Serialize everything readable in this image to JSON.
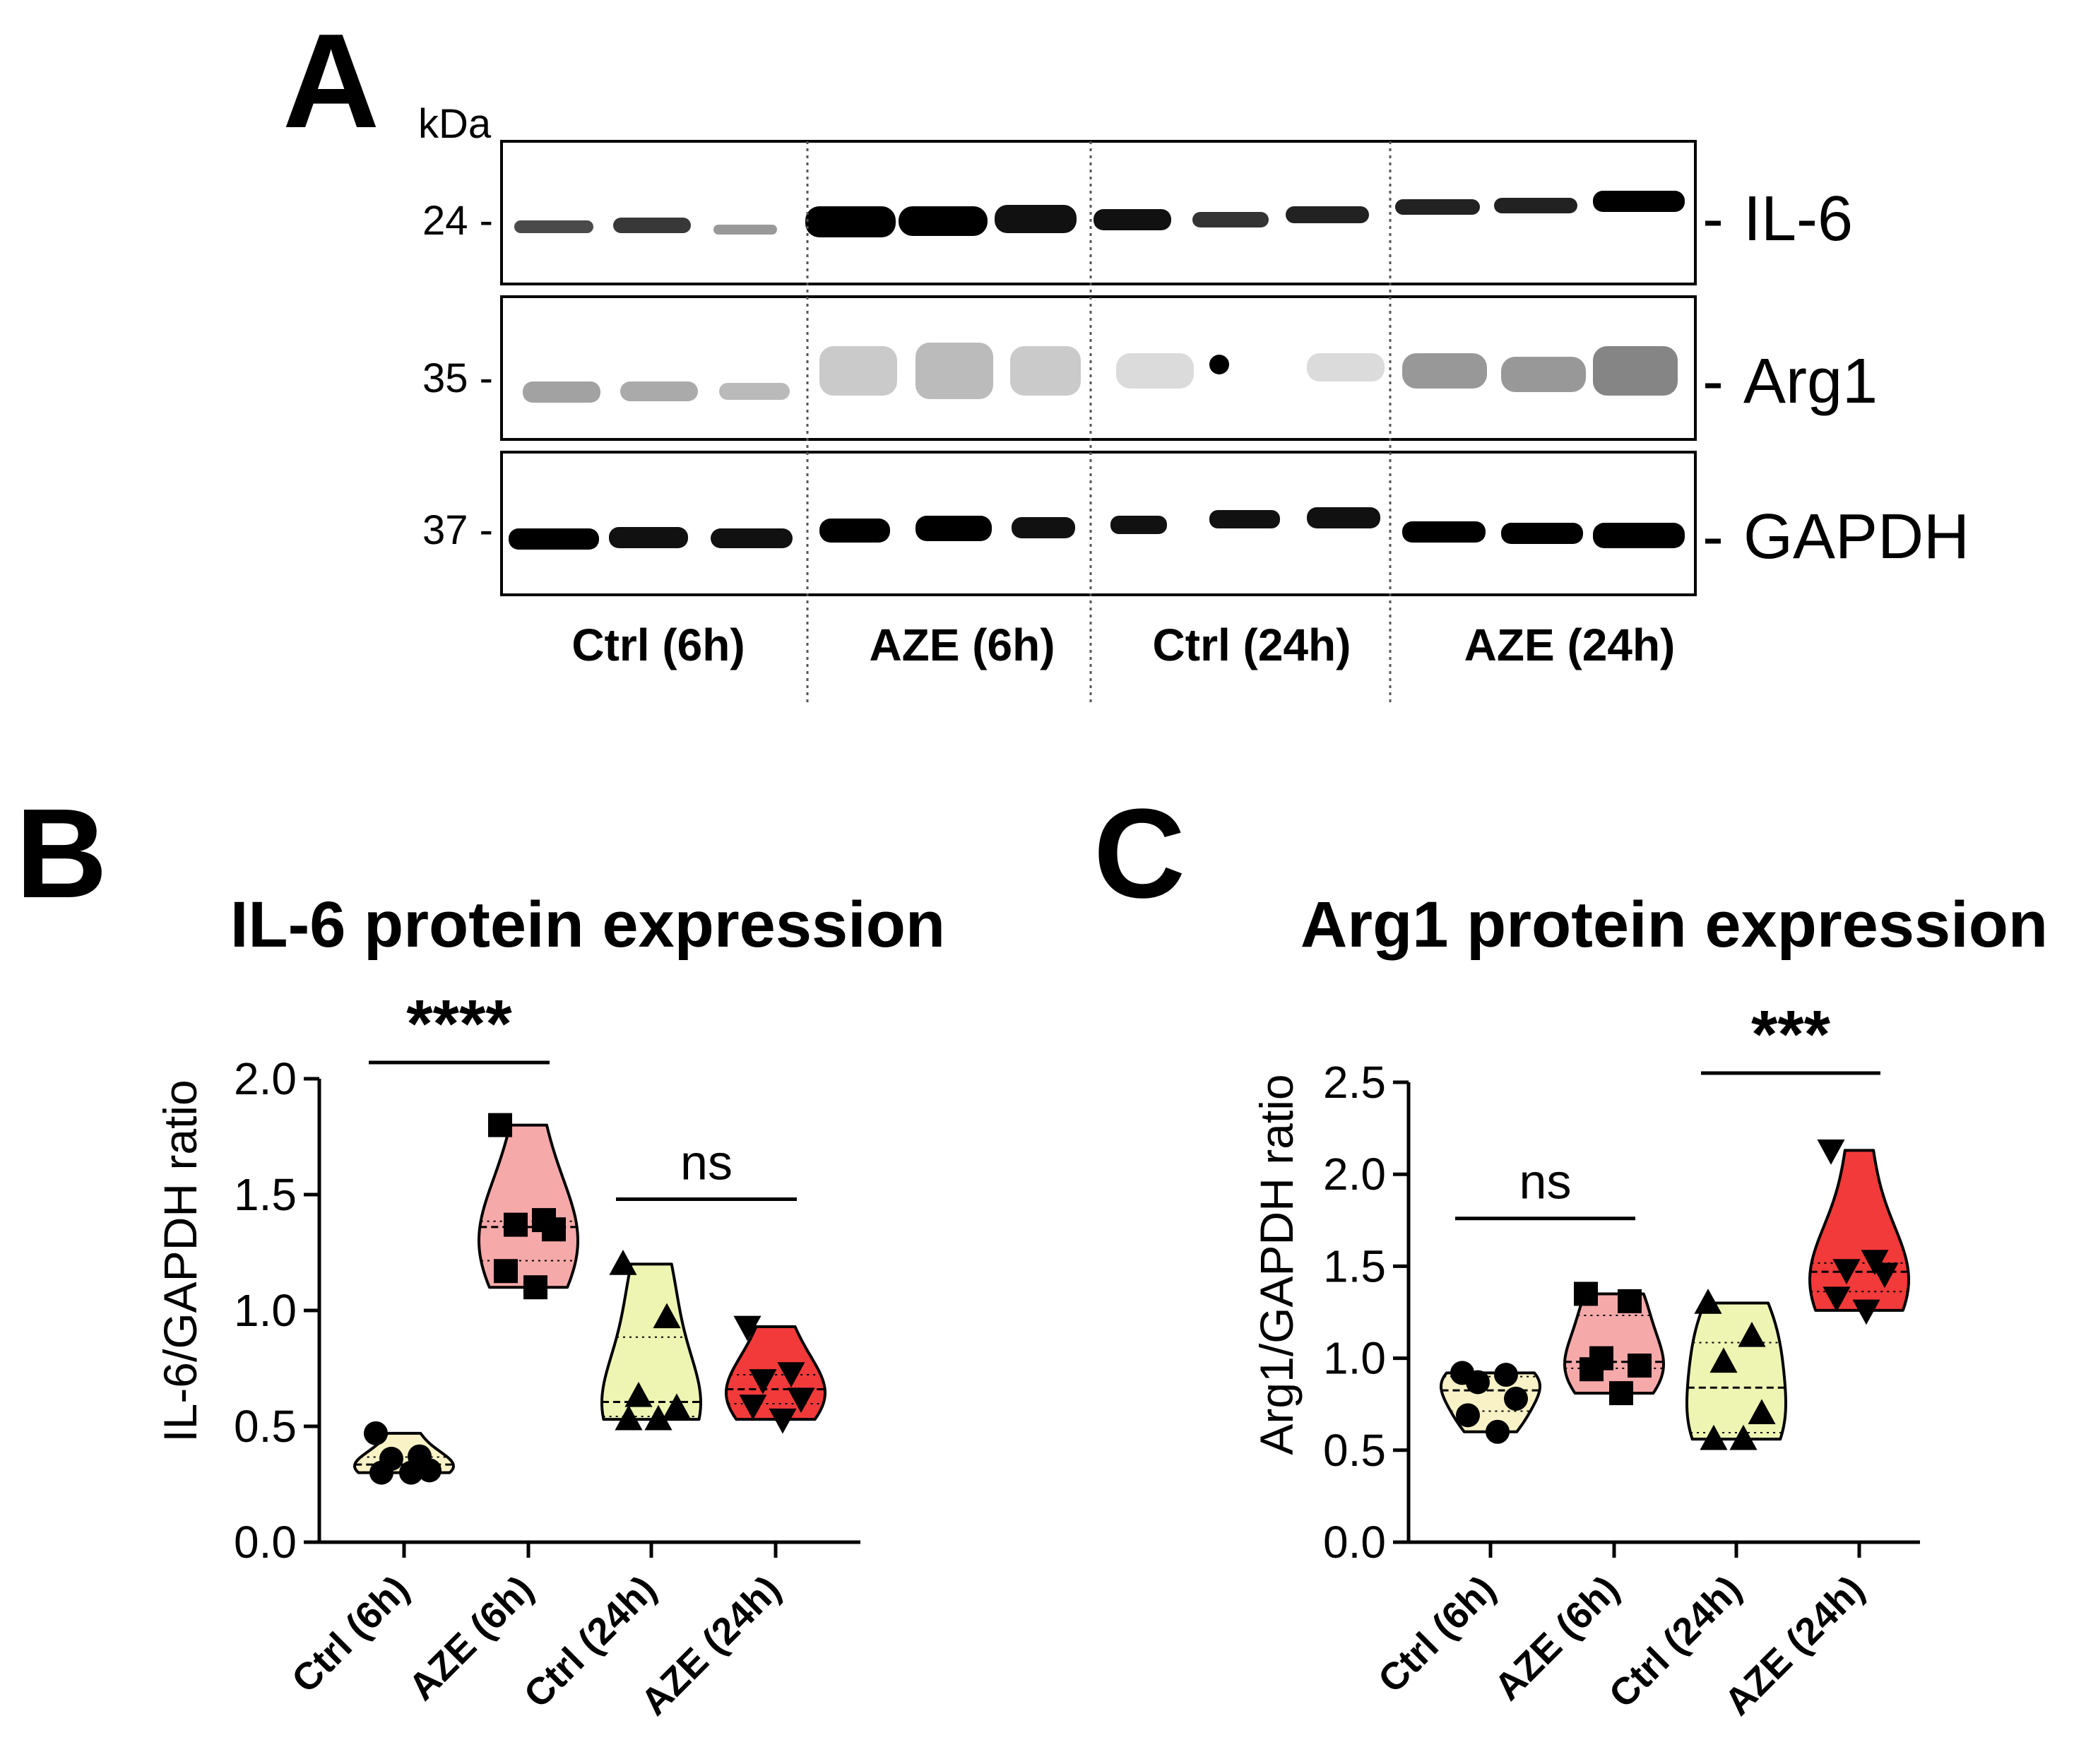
{
  "panel_a": {
    "letter": "A",
    "kda_label": "kDa",
    "blots": [
      {
        "protein": "IL-6",
        "marker": "24 -",
        "label_prefix": "- "
      },
      {
        "protein": "Arg1",
        "marker": "35 -",
        "label_prefix": "- "
      },
      {
        "protein": "GAPDH",
        "marker": "37 -",
        "label_prefix": "- "
      }
    ],
    "lane_groups": [
      "Ctrl (6h)",
      "AZE (6h)",
      "Ctrl (24h)",
      "AZE (24h)"
    ]
  },
  "colors": {
    "ctrl_6h": "#f8f2c6",
    "aze_6h": "#f6a9a9",
    "ctrl_24h": "#eef5b3",
    "aze_24h": "#f23a3a",
    "ink": "#000000"
  },
  "chart_data": [
    {
      "panel": "B",
      "type": "violin",
      "title": "IL-6 protein expression",
      "ylabel": "IL-6/GAPDH ratio",
      "xlabel": "",
      "ylim": [
        0,
        2.0
      ],
      "yticks": [
        "0.0",
        "0.5",
        "1.0",
        "1.5",
        "2.0"
      ],
      "categories": [
        "Ctrl (6h)",
        "AZE (6h)",
        "Ctrl (24h)",
        "AZE (24h)"
      ],
      "series": [
        {
          "name": "Ctrl (6h)",
          "marker": "circle",
          "values": [
            0.47,
            0.37,
            0.36,
            0.31,
            0.3,
            0.3
          ]
        },
        {
          "name": "AZE (6h)",
          "marker": "square",
          "values": [
            1.8,
            1.39,
            1.37,
            1.35,
            1.17,
            1.1
          ]
        },
        {
          "name": "Ctrl (24h)",
          "marker": "triangle-up",
          "values": [
            1.2,
            0.97,
            0.63,
            0.58,
            0.53,
            0.53
          ]
        },
        {
          "name": "AZE (24h)",
          "marker": "triangle-down",
          "values": [
            0.93,
            0.73,
            0.7,
            0.62,
            0.59,
            0.53
          ]
        }
      ],
      "significance": [
        {
          "label": "****",
          "from": 0,
          "to": 1,
          "y": 2.07
        },
        {
          "label": "ns",
          "from": 2,
          "to": 3,
          "y": 1.48
        }
      ]
    },
    {
      "panel": "C",
      "type": "violin",
      "title": "Arg1 protein expression",
      "ylabel": "Arg1/GAPDH ratio",
      "xlabel": "",
      "ylim": [
        0,
        2.5
      ],
      "yticks": [
        "0.0",
        "0.5",
        "1.0",
        "1.5",
        "2.0",
        "2.5"
      ],
      "categories": [
        "Ctrl (6h)",
        "AZE (6h)",
        "Ctrl (24h)",
        "AZE (24h)"
      ],
      "series": [
        {
          "name": "Ctrl (6h)",
          "marker": "circle",
          "values": [
            0.92,
            0.91,
            0.87,
            0.78,
            0.69,
            0.6
          ]
        },
        {
          "name": "AZE (6h)",
          "marker": "square",
          "values": [
            1.35,
            1.31,
            1.0,
            0.96,
            0.94,
            0.81
          ]
        },
        {
          "name": "Ctrl (24h)",
          "marker": "triangle-up",
          "values": [
            1.3,
            1.12,
            0.98,
            0.7,
            0.56,
            0.56
          ]
        },
        {
          "name": "AZE (24h)",
          "marker": "triangle-down",
          "values": [
            2.13,
            1.53,
            1.48,
            1.46,
            1.33,
            1.26
          ]
        }
      ],
      "significance": [
        {
          "label": "ns",
          "from": 0,
          "to": 1,
          "y": 1.76
        },
        {
          "label": "***",
          "from": 2,
          "to": 3,
          "y": 2.55
        }
      ]
    }
  ]
}
